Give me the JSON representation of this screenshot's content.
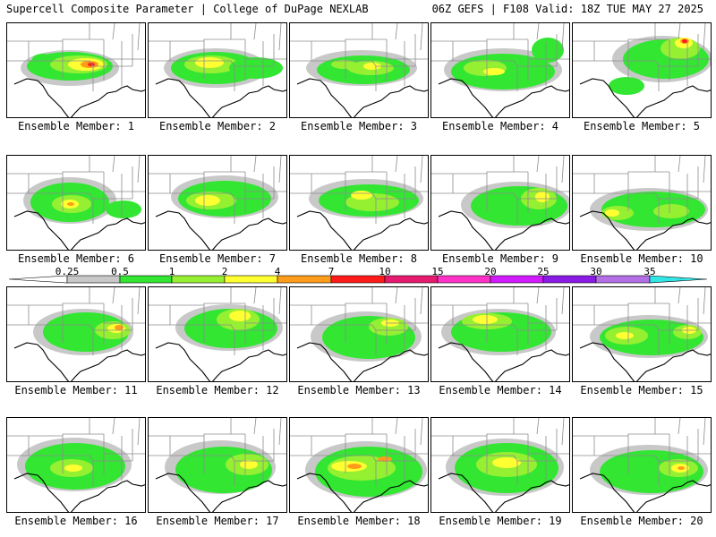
{
  "header": {
    "title_left": "Supercell Composite Parameter | College of DuPage NEXLAB",
    "title_right": "06Z GEFS | F108 Valid: 18Z TUE MAY 27 2025"
  },
  "colorbar": {
    "ticks": [
      "0.25",
      "0.5",
      "1",
      "2",
      "4",
      "7",
      "10",
      "15",
      "20",
      "25",
      "30",
      "35"
    ],
    "colors": [
      "#c8c8c8",
      "#32e632",
      "#96f032",
      "#ffff32",
      "#ff9c1a",
      "#ff1a1a",
      "#e61a6e",
      "#ff32c8",
      "#d21aff",
      "#8a1ae6",
      "#b46ee6",
      "#32e6e6"
    ]
  },
  "map": {
    "land_color": "#ffffff",
    "border_color": "#000000",
    "state_line_color": "#8c8c8c"
  },
  "members": [
    {
      "label": "Ensemble Member: 1"
    },
    {
      "label": "Ensemble Member: 2"
    },
    {
      "label": "Ensemble Member: 3"
    },
    {
      "label": "Ensemble Member: 4"
    },
    {
      "label": "Ensemble Member: 5"
    },
    {
      "label": "Ensemble Member: 6"
    },
    {
      "label": "Ensemble Member: 7"
    },
    {
      "label": "Ensemble Member: 8"
    },
    {
      "label": "Ensemble Member: 9"
    },
    {
      "label": "Ensemble Member: 10"
    },
    {
      "label": "Ensemble Member: 11"
    },
    {
      "label": "Ensemble Member: 12"
    },
    {
      "label": "Ensemble Member: 13"
    },
    {
      "label": "Ensemble Member: 14"
    },
    {
      "label": "Ensemble Member: 15"
    },
    {
      "label": "Ensemble Member: 16"
    },
    {
      "label": "Ensemble Member: 17"
    },
    {
      "label": "Ensemble Member: 18"
    },
    {
      "label": "Ensemble Member: 19"
    },
    {
      "label": "Ensemble Member: 20"
    }
  ]
}
